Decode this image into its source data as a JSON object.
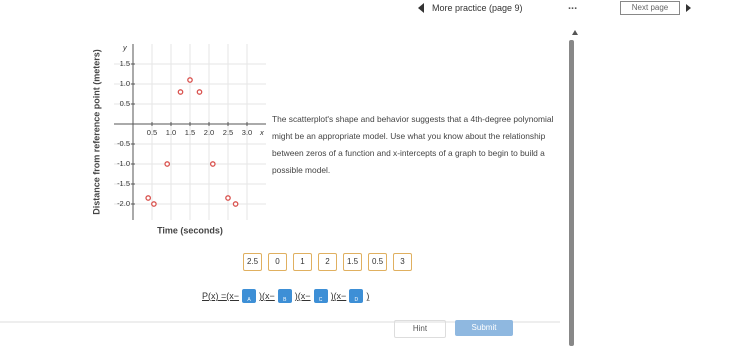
{
  "header": {
    "title": "More practice (page 9)",
    "menu": "...",
    "next": "Next page"
  },
  "chart_data": {
    "type": "scatter",
    "x_label": "Time (seconds)",
    "y_label": "Distance from reference point (meters)",
    "x_axis_letter": "x",
    "y_axis_letter": "y",
    "x": [
      0.4,
      0.55,
      0.9,
      1.25,
      1.5,
      1.75,
      2.1,
      2.5,
      2.7
    ],
    "values": [
      -1.85,
      -2.0,
      -1.0,
      0.8,
      1.1,
      0.8,
      -1.0,
      -1.85,
      -2.0
    ],
    "color": "#d9534f",
    "xlim": [
      -0.5,
      3.5
    ],
    "ylim": [
      -2.4,
      2.0
    ],
    "xticks": [
      0.5,
      {
        "value": 1,
        "label": "1.0"
      },
      1.5,
      {
        "value": 2,
        "label": "2.0"
      },
      2.5,
      {
        "value": 3,
        "label": "3.0"
      }
    ],
    "yticks": [
      1.5,
      {
        "value": 1,
        "label": "1.0"
      },
      0.5,
      -0.5,
      {
        "value": -1,
        "label": "-1.0"
      },
      -1.5,
      {
        "value": -2,
        "label": "-2.0"
      }
    ],
    "grid": true
  },
  "text": "The scatterplot's shape and behavior suggests that a 4th-degree polynomial might be an appropriate model. Use what you know about the relationship between zeros of a function and x-intercepts of a graph to begin to build a possible model.",
  "cards": [
    "2.5",
    "0",
    "1",
    "2",
    "1.5",
    "0.5",
    "3"
  ],
  "equation": {
    "lhs": "P(x) = ",
    "factors": [
      {
        "open": "(x−",
        "slot": "A",
        "close": ")"
      },
      {
        "open": "(x−",
        "slot": "B",
        "close": ")"
      },
      {
        "open": "(x−",
        "slot": "C",
        "close": ")"
      },
      {
        "open": "(x−",
        "slot": "D",
        "close": ")"
      }
    ]
  },
  "buttons": {
    "hint": "Hint",
    "submit": "Submit"
  }
}
